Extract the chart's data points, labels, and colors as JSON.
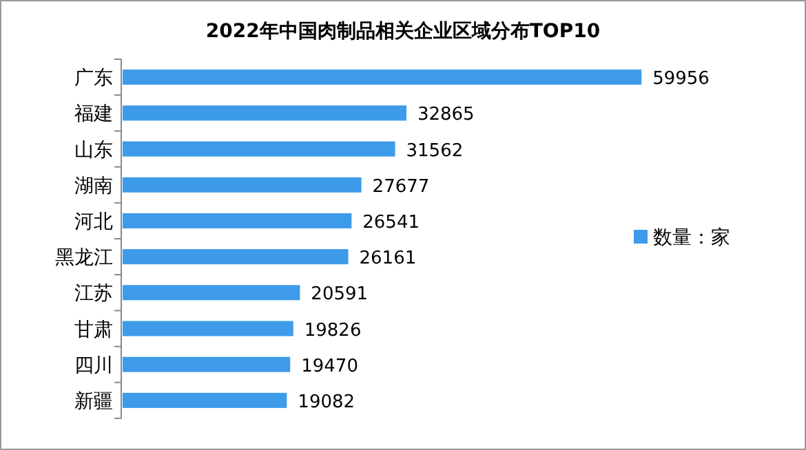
{
  "chart_data": {
    "type": "bar",
    "orientation": "horizontal",
    "title": "2022年中国肉制品相关企业区域分布TOP10",
    "categories": [
      "广东",
      "福建",
      "山东",
      "湖南",
      "河北",
      "黑龙江",
      "江苏",
      "甘肃",
      "四川",
      "新疆"
    ],
    "series": [
      {
        "name": "数量：家",
        "color": "#3d9be9",
        "values": [
          59956,
          32865,
          31562,
          27677,
          26541,
          26161,
          20591,
          19826,
          19470,
          19082
        ]
      }
    ],
    "data_labels": true,
    "legend": "right"
  }
}
